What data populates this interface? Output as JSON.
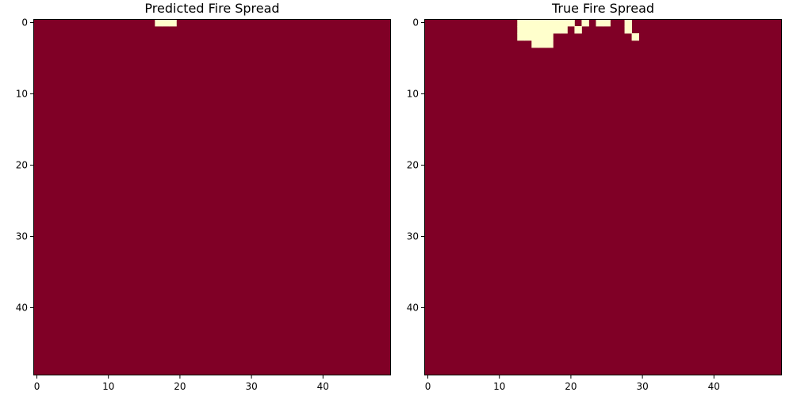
{
  "chart_data": [
    {
      "type": "heatmap",
      "title": "Predicted Fire Spread",
      "xlabel": "",
      "ylabel": "",
      "grid_size": [
        50,
        50
      ],
      "xlim": [
        -0.5,
        49.5
      ],
      "ylim": [
        49.5,
        -0.5
      ],
      "x_ticks": [
        0,
        10,
        20,
        30,
        40
      ],
      "y_ticks": [
        0,
        10,
        20,
        30,
        40
      ],
      "grid": false,
      "background_value": 0,
      "background_color": "#800026",
      "fire_color": "#ffffcc",
      "fire_cells": [
        [
          0,
          17
        ],
        [
          0,
          18
        ],
        [
          0,
          19
        ]
      ]
    },
    {
      "type": "heatmap",
      "title": "True Fire Spread",
      "xlabel": "",
      "ylabel": "",
      "grid_size": [
        50,
        50
      ],
      "xlim": [
        -0.5,
        49.5
      ],
      "ylim": [
        49.5,
        -0.5
      ],
      "x_ticks": [
        0,
        10,
        20,
        30,
        40
      ],
      "y_ticks": [
        0,
        10,
        20,
        30,
        40
      ],
      "grid": false,
      "background_value": 0,
      "background_color": "#800026",
      "fire_color": "#ffffcc",
      "fire_cells": [
        [
          0,
          13
        ],
        [
          0,
          14
        ],
        [
          0,
          15
        ],
        [
          0,
          16
        ],
        [
          0,
          17
        ],
        [
          0,
          18
        ],
        [
          0,
          19
        ],
        [
          0,
          20
        ],
        [
          0,
          22
        ],
        [
          0,
          24
        ],
        [
          0,
          25
        ],
        [
          0,
          28
        ],
        [
          1,
          13
        ],
        [
          1,
          14
        ],
        [
          1,
          15
        ],
        [
          1,
          16
        ],
        [
          1,
          17
        ],
        [
          1,
          18
        ],
        [
          1,
          19
        ],
        [
          1,
          21
        ],
        [
          1,
          28
        ],
        [
          2,
          13
        ],
        [
          2,
          14
        ],
        [
          2,
          15
        ],
        [
          2,
          16
        ],
        [
          2,
          17
        ],
        [
          2,
          29
        ],
        [
          3,
          15
        ],
        [
          3,
          16
        ],
        [
          3,
          17
        ]
      ]
    }
  ]
}
